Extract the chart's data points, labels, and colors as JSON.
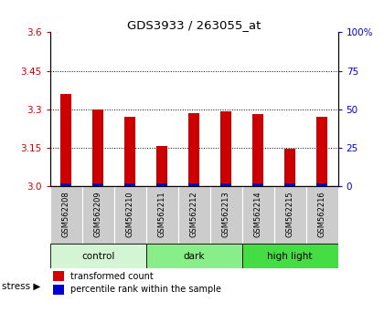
{
  "title": "GDS3933 / 263055_at",
  "samples": [
    "GSM562208",
    "GSM562209",
    "GSM562210",
    "GSM562211",
    "GSM562212",
    "GSM562213",
    "GSM562214",
    "GSM562215",
    "GSM562216"
  ],
  "red_values": [
    3.36,
    3.3,
    3.27,
    3.155,
    3.285,
    3.292,
    3.28,
    3.145,
    3.272
  ],
  "blue_percentiles": [
    2,
    2,
    2,
    2,
    2,
    2,
    2,
    2,
    2
  ],
  "y_min": 3.0,
  "y_max": 3.6,
  "y_ticks_left": [
    3.0,
    3.15,
    3.3,
    3.45,
    3.6
  ],
  "y_ticks_right": [
    0,
    25,
    50,
    75,
    100
  ],
  "groups": [
    {
      "label": "control",
      "start": 0,
      "end": 3,
      "color": "#d4f5d4"
    },
    {
      "label": "dark",
      "start": 3,
      "end": 6,
      "color": "#88ee88"
    },
    {
      "label": "high light",
      "start": 6,
      "end": 9,
      "color": "#44dd44"
    }
  ],
  "stress_label": "stress",
  "legend_red": "transformed count",
  "legend_blue": "percentile rank within the sample",
  "bar_color_red": "#cc0000",
  "bar_color_blue": "#0000cc",
  "tick_color_left": "#cc0000",
  "tick_color_right": "#0000cc",
  "bar_width": 0.35,
  "figsize": [
    4.2,
    3.54
  ],
  "dpi": 100
}
